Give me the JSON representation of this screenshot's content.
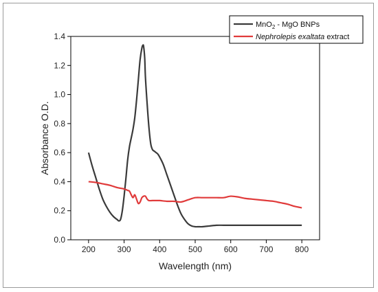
{
  "chart_data": {
    "type": "line",
    "xlabel": "Wavelength (nm)",
    "ylabel": "Absorbance O.D.",
    "xlim": [
      150,
      850
    ],
    "ylim": [
      0.0,
      1.4
    ],
    "xticks": [
      200,
      300,
      400,
      500,
      600,
      700,
      800
    ],
    "yticks": [
      0.0,
      0.2,
      0.4,
      0.6,
      0.8,
      1.0,
      1.2,
      1.4
    ],
    "ytick_labels": [
      "0.0",
      "0.2",
      "0.4",
      "0.6",
      "0.8",
      "1.0",
      "1.2",
      "1.4"
    ],
    "legend_position": "top-right",
    "series": [
      {
        "name": "MnO2 - MgO BNPs",
        "legend": {
          "prefix": "MnO",
          "sub": "2",
          "suffix": " - MgO BNPs"
        },
        "color": "#3a3a3a",
        "x": [
          200,
          210,
          220,
          230,
          240,
          250,
          260,
          270,
          280,
          285,
          290,
          295,
          300,
          305,
          310,
          315,
          320,
          325,
          330,
          335,
          340,
          345,
          350,
          353,
          355,
          358,
          360,
          365,
          370,
          375,
          380,
          385,
          390,
          395,
          400,
          410,
          420,
          430,
          440,
          450,
          460,
          470,
          480,
          490,
          500,
          510,
          520,
          540,
          560,
          580,
          600,
          650,
          700,
          750,
          800
        ],
        "y": [
          0.6,
          0.51,
          0.43,
          0.35,
          0.28,
          0.23,
          0.19,
          0.16,
          0.14,
          0.13,
          0.14,
          0.2,
          0.3,
          0.42,
          0.55,
          0.64,
          0.7,
          0.76,
          0.84,
          0.96,
          1.1,
          1.24,
          1.32,
          1.34,
          1.33,
          1.25,
          1.12,
          0.93,
          0.77,
          0.66,
          0.62,
          0.61,
          0.6,
          0.59,
          0.57,
          0.52,
          0.45,
          0.38,
          0.31,
          0.24,
          0.18,
          0.14,
          0.11,
          0.095,
          0.09,
          0.09,
          0.09,
          0.095,
          0.1,
          0.1,
          0.1,
          0.1,
          0.1,
          0.1,
          0.1
        ]
      },
      {
        "name": "Nephrolepis exaltata extract",
        "legend": {
          "italic": "Nephrolepis exaltata",
          "suffix": " extract"
        },
        "color": "#e03a3a",
        "x": [
          200,
          220,
          240,
          260,
          280,
          300,
          310,
          315,
          320,
          325,
          330,
          335,
          340,
          345,
          350,
          355,
          360,
          365,
          370,
          380,
          390,
          400,
          420,
          440,
          460,
          480,
          500,
          520,
          540,
          560,
          580,
          600,
          620,
          640,
          660,
          680,
          700,
          720,
          740,
          760,
          780,
          800
        ],
        "y": [
          0.4,
          0.395,
          0.385,
          0.375,
          0.36,
          0.35,
          0.34,
          0.335,
          0.31,
          0.29,
          0.31,
          0.28,
          0.25,
          0.26,
          0.29,
          0.3,
          0.3,
          0.28,
          0.27,
          0.27,
          0.27,
          0.27,
          0.265,
          0.265,
          0.26,
          0.275,
          0.29,
          0.29,
          0.29,
          0.29,
          0.29,
          0.3,
          0.295,
          0.285,
          0.28,
          0.275,
          0.27,
          0.265,
          0.255,
          0.245,
          0.23,
          0.22
        ]
      }
    ]
  }
}
